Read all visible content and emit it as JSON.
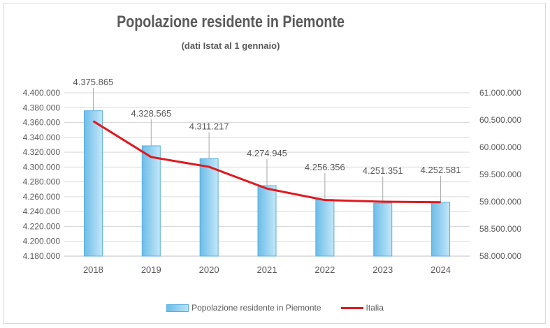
{
  "chart_data": {
    "type": "bar",
    "title": "Popolazione residente in Piemonte",
    "subtitle": "(dati Istat al 1 gennaio)",
    "categories": [
      "2018",
      "2019",
      "2020",
      "2021",
      "2022",
      "2023",
      "2024"
    ],
    "series": [
      {
        "name": "Popolazione residente in Piemonte",
        "type": "bar",
        "axis": "left",
        "values": [
          4375865,
          4328565,
          4311217,
          4274945,
          4256356,
          4251351,
          4252581
        ],
        "labels": [
          "4.375.865",
          "4.328.565",
          "4.311.217",
          "4.274.945",
          "4.256.356",
          "4.251.351",
          "4.252.581"
        ],
        "color": "#8fd0f2"
      },
      {
        "name": "Italia",
        "type": "line",
        "axis": "right",
        "values": [
          60480000,
          59820000,
          59640000,
          59240000,
          59030000,
          59000000,
          58990000
        ],
        "color": "#e0191f"
      }
    ],
    "y_left": {
      "min": 4180000,
      "max": 4400000,
      "step": 20000,
      "ticks": [
        "4.180.000",
        "4.200.000",
        "4.220.000",
        "4.240.000",
        "4.260.000",
        "4.280.000",
        "4.300.000",
        "4.320.000",
        "4.340.000",
        "4.360.000",
        "4.380.000",
        "4.400.000"
      ]
    },
    "y_right": {
      "min": 58000000,
      "max": 61000000,
      "step": 500000,
      "ticks": [
        "58.000.000",
        "58.500.000",
        "59.000.000",
        "59.500.000",
        "60.000.000",
        "60.500.000",
        "61.000.000"
      ]
    },
    "grid": true,
    "legend_position": "bottom"
  }
}
